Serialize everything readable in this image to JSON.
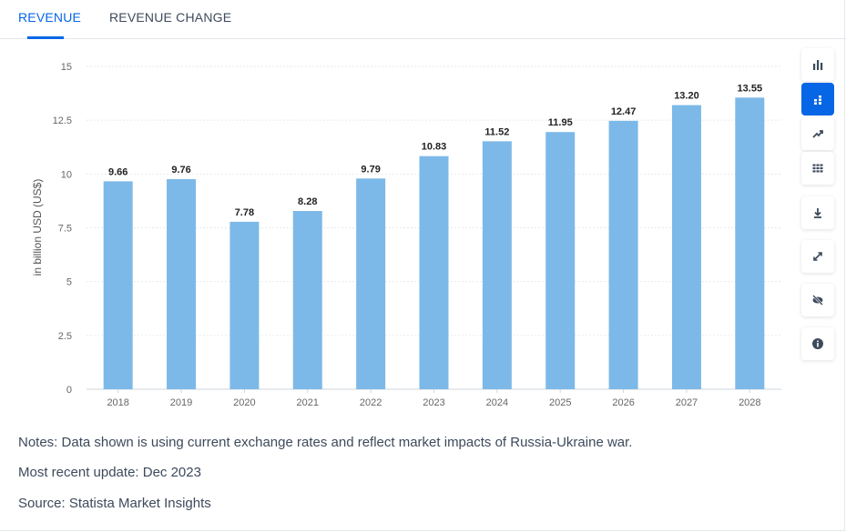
{
  "tabs": [
    {
      "label": "REVENUE",
      "active": true
    },
    {
      "label": "REVENUE CHANGE",
      "active": false
    }
  ],
  "toolbar": {
    "icons": [
      "bar-chart-icon",
      "stacked-bar-icon",
      "trend-line-icon",
      "table-icon",
      "download-icon",
      "fullscreen-icon",
      "hide-icon",
      "info-icon"
    ],
    "active": "stacked-bar-icon",
    "accent": "#0666e5"
  },
  "chart_data": {
    "type": "bar",
    "categories": [
      "2018",
      "2019",
      "2020",
      "2021",
      "2022",
      "2023",
      "2024",
      "2025",
      "2026",
      "2027",
      "2028"
    ],
    "values": [
      9.66,
      9.76,
      7.78,
      8.28,
      9.79,
      10.83,
      11.52,
      11.95,
      12.47,
      13.2,
      13.55
    ],
    "value_labels": [
      "9.66",
      "9.76",
      "7.78",
      "8.28",
      "9.79",
      "10.83",
      "11.52",
      "11.95",
      "12.47",
      "13.20",
      "13.55"
    ],
    "ylabel": "in billion USD (US$)",
    "ylim": [
      0,
      15
    ],
    "yticks": [
      "0",
      "2.5",
      "5",
      "7.5",
      "10",
      "12.5",
      "15"
    ],
    "bar_color": "#7cb9e8",
    "grid": true
  },
  "notes": {
    "line1": "Notes: Data shown is using current exchange rates and reflect market impacts of Russia-Ukraine war.",
    "line2": "Most recent update: Dec 2023",
    "line3": "Source: Statista Market Insights"
  }
}
